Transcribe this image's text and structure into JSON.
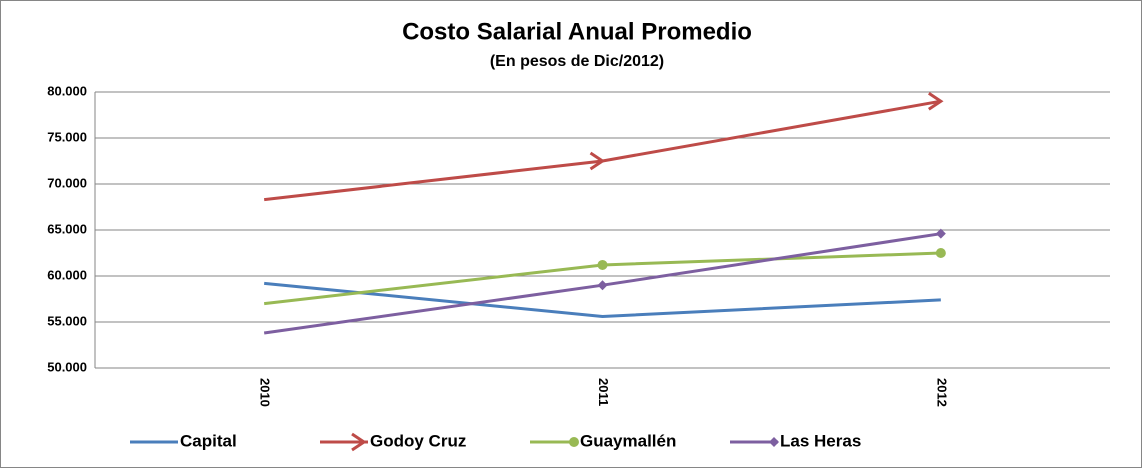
{
  "chart_data": {
    "type": "line",
    "title": "Costo Salarial Anual Promedio",
    "subtitle": "(En pesos de Dic/2012)",
    "categories": [
      "2010",
      "2011",
      "2012"
    ],
    "series": [
      {
        "name": "Capital",
        "color": "#4a7ebb",
        "marker": "none",
        "values": [
          59200,
          55600,
          57400
        ]
      },
      {
        "name": "Godoy Cruz",
        "color": "#be4b48",
        "marker": "arrow",
        "values": [
          68300,
          72500,
          79000
        ]
      },
      {
        "name": "Guaymallén",
        "color": "#98b954",
        "marker": "circle",
        "values": [
          57000,
          61200,
          62500
        ]
      },
      {
        "name": "Las Heras",
        "color": "#7d5fa0",
        "marker": "diamond",
        "values": [
          53800,
          59000,
          64600
        ]
      }
    ],
    "ylim": [
      50000,
      80000
    ],
    "yticks": [
      {
        "value": 50000,
        "label": "50.000"
      },
      {
        "value": 55000,
        "label": "55.000"
      },
      {
        "value": 60000,
        "label": "60.000"
      },
      {
        "value": 65000,
        "label": "65.000"
      },
      {
        "value": 70000,
        "label": "70.000"
      },
      {
        "value": 75000,
        "label": "75.000"
      },
      {
        "value": 80000,
        "label": "80.000"
      }
    ],
    "grid": true,
    "legend": "bottom"
  }
}
